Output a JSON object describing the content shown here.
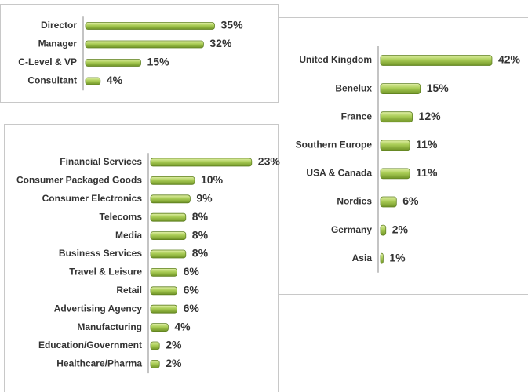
{
  "chart_data": [
    {
      "type": "bar",
      "orientation": "horizontal",
      "color": "#9bc446",
      "categories": [
        "Director",
        "Manager",
        "C-Level & VP",
        "Consultant"
      ],
      "values": [
        35,
        32,
        15,
        4
      ],
      "value_labels": [
        "35%",
        "32%",
        "15%",
        "4%"
      ]
    },
    {
      "type": "bar",
      "orientation": "horizontal",
      "color": "#9bc446",
      "categories": [
        "United Kingdom",
        "Benelux",
        "France",
        "Southern Europe",
        "USA & Canada",
        "Nordics",
        "Germany",
        "Asia"
      ],
      "values": [
        42,
        15,
        12,
        11,
        11,
        6,
        2,
        1
      ],
      "value_labels": [
        "42%",
        "15%",
        "12%",
        "11%",
        "11%",
        "6%",
        "2%",
        "1%"
      ]
    },
    {
      "type": "bar",
      "orientation": "horizontal",
      "color": "#9bc446",
      "categories": [
        "Financial Services",
        "Consumer Packaged Goods",
        "Consumer Electronics",
        "Telecoms",
        "Media",
        "Business Services",
        "Travel & Leisure",
        "Retail",
        "Advertising Agency",
        "Manufacturing",
        "Education/Government",
        "Healthcare/Pharma"
      ],
      "values": [
        23,
        10,
        9,
        8,
        8,
        8,
        6,
        6,
        6,
        4,
        2,
        2
      ],
      "value_labels": [
        "23%",
        "10%",
        "9%",
        "8%",
        "8%",
        "8%",
        "6%",
        "6%",
        "6%",
        "4%",
        "2%",
        "2%"
      ]
    }
  ]
}
